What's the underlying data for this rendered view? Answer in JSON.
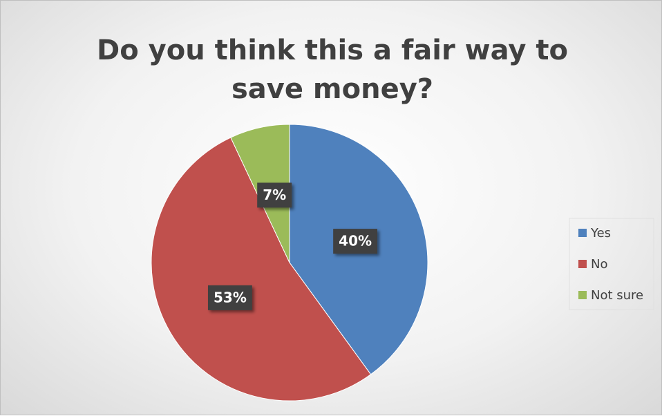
{
  "chart_data": {
    "type": "pie",
    "title": "Do you think this a fair way to save money?",
    "categories": [
      "Yes",
      "No",
      "Not sure"
    ],
    "values": [
      40,
      53,
      7
    ],
    "value_labels": [
      "40%",
      "53%",
      "7%"
    ],
    "colors": [
      "#4f81bd",
      "#c0504d",
      "#9bbb59"
    ],
    "legend": "right"
  }
}
